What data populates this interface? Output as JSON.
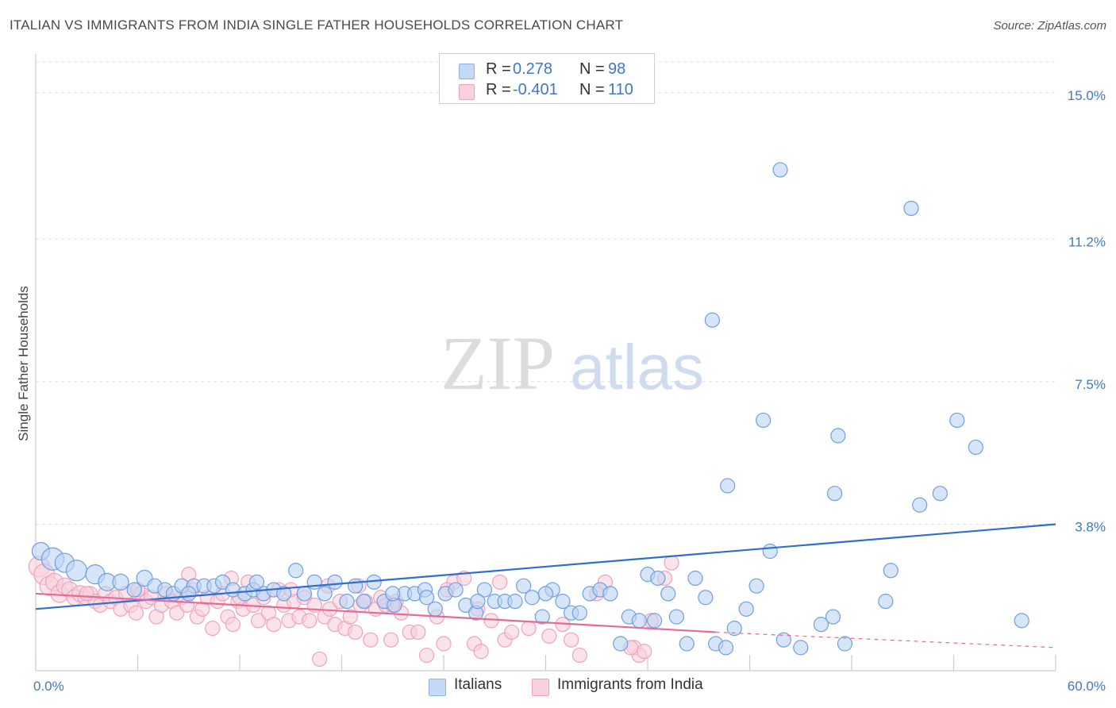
{
  "title": "ITALIAN VS IMMIGRANTS FROM INDIA SINGLE FATHER HOUSEHOLDS CORRELATION CHART",
  "source": "Source: ZipAtlas.com",
  "watermark": {
    "zip": "ZIP",
    "atlas": "atlas"
  },
  "legend": {
    "rows": [
      {
        "r_label": "R =",
        "r_value": "0.278",
        "n_label": "N =",
        "n_value": "98",
        "color": "#8fb3e8",
        "fill": "#c5d8f5"
      },
      {
        "r_label": "R =",
        "r_value": "-0.401",
        "n_label": "N =",
        "n_value": "110",
        "color": "#f0a2bb",
        "fill": "#f9d0dc"
      }
    ]
  },
  "bottom_legend": [
    {
      "label": "Italians",
      "color": "#8fb3e8",
      "fill": "#c5d8f5"
    },
    {
      "label": "Immigrants from India",
      "color": "#f0a2bb",
      "fill": "#f9d0dc"
    }
  ],
  "chart_data": {
    "type": "scatter",
    "title": "ITALIAN VS IMMIGRANTS FROM INDIA SINGLE FATHER HOUSEHOLDS CORRELATION CHART",
    "xlabel": "",
    "ylabel": "Single Father Households",
    "xlim": [
      0,
      60
    ],
    "ylim": [
      0,
      15.8
    ],
    "x_tick_labels": [
      "0.0%",
      "60.0%"
    ],
    "y_ticks": [
      3.8,
      7.5,
      11.2,
      15.0
    ],
    "y_tick_labels": [
      "3.8%",
      "7.5%",
      "11.2%",
      "15.0%"
    ],
    "grid": "horizontal dashed",
    "series": [
      {
        "name": "Italians",
        "color": "#6f9fe0",
        "fill": "#bcd3f3",
        "trend": {
          "x": [
            0,
            60
          ],
          "y": [
            1.6,
            3.8
          ],
          "color": "#2e6fcf"
        },
        "points": [
          [
            0.3,
            3.1,
            11
          ],
          [
            1.0,
            2.9,
            14
          ],
          [
            1.7,
            2.8,
            12
          ],
          [
            2.4,
            2.6,
            13
          ],
          [
            3.5,
            2.5,
            12
          ],
          [
            4.2,
            2.3,
            11
          ],
          [
            5.0,
            2.3,
            10
          ],
          [
            5.8,
            2.1,
            9
          ],
          [
            6.4,
            2.4,
            10
          ],
          [
            7.0,
            2.2,
            9
          ],
          [
            7.6,
            2.1,
            9
          ],
          [
            8.1,
            2.0,
            9
          ],
          [
            8.6,
            2.2,
            9
          ],
          [
            9.3,
            2.2,
            9
          ],
          [
            9.9,
            2.2,
            9
          ],
          [
            10.5,
            2.2,
            9
          ],
          [
            11.0,
            2.3,
            9
          ],
          [
            11.6,
            2.1,
            9
          ],
          [
            12.3,
            2.0,
            9
          ],
          [
            12.8,
            2.1,
            9
          ],
          [
            13.4,
            2.0,
            9
          ],
          [
            14.0,
            2.1,
            9
          ],
          [
            14.6,
            2.0,
            9
          ],
          [
            15.3,
            2.6,
            9
          ],
          [
            15.8,
            2.0,
            9
          ],
          [
            16.4,
            2.3,
            9
          ],
          [
            17.0,
            2.0,
            9
          ],
          [
            17.6,
            2.3,
            9
          ],
          [
            18.3,
            1.8,
            9
          ],
          [
            18.8,
            2.2,
            9
          ],
          [
            19.3,
            1.8,
            9
          ],
          [
            19.9,
            2.3,
            9
          ],
          [
            20.5,
            1.8,
            9
          ],
          [
            21.1,
            1.7,
            9
          ],
          [
            21.7,
            2.0,
            9
          ],
          [
            22.3,
            2.0,
            9
          ],
          [
            22.9,
            2.1,
            9
          ],
          [
            23.5,
            1.6,
            9
          ],
          [
            24.1,
            2.0,
            9
          ],
          [
            24.7,
            2.1,
            9
          ],
          [
            25.3,
            1.7,
            9
          ],
          [
            25.9,
            1.5,
            9
          ],
          [
            26.4,
            2.1,
            9
          ],
          [
            27.0,
            1.8,
            9
          ],
          [
            27.6,
            1.8,
            9
          ],
          [
            28.2,
            1.8,
            9
          ],
          [
            28.7,
            2.2,
            9
          ],
          [
            29.2,
            1.9,
            9
          ],
          [
            29.8,
            1.4,
            9
          ],
          [
            30.4,
            2.1,
            9
          ],
          [
            31.0,
            1.8,
            9
          ],
          [
            31.5,
            1.5,
            9
          ],
          [
            32.0,
            1.5,
            9
          ],
          [
            32.6,
            2.0,
            9
          ],
          [
            33.2,
            2.1,
            9
          ],
          [
            33.8,
            2.0,
            9
          ],
          [
            34.4,
            0.7,
            9
          ],
          [
            34.9,
            1.4,
            9
          ],
          [
            35.5,
            1.3,
            9
          ],
          [
            36.0,
            2.5,
            9
          ],
          [
            36.6,
            2.4,
            9
          ],
          [
            37.2,
            2.0,
            9
          ],
          [
            37.7,
            1.4,
            9
          ],
          [
            38.3,
            0.7,
            9
          ],
          [
            38.8,
            2.4,
            9
          ],
          [
            39.4,
            1.9,
            9
          ],
          [
            40.0,
            0.7,
            9
          ],
          [
            40.6,
            0.6,
            9
          ],
          [
            41.1,
            1.1,
            9
          ],
          [
            41.8,
            1.6,
            9
          ],
          [
            42.4,
            2.2,
            9
          ],
          [
            43.2,
            3.1,
            9
          ],
          [
            45.0,
            0.6,
            9
          ],
          [
            46.2,
            1.2,
            9
          ],
          [
            46.9,
            1.4,
            9
          ],
          [
            44.0,
            0.8,
            9
          ],
          [
            47.6,
            0.7,
            9
          ],
          [
            50.3,
            2.6,
            9
          ],
          [
            50.0,
            1.8,
            9
          ],
          [
            52.0,
            4.3,
            9
          ],
          [
            53.2,
            4.6,
            9
          ],
          [
            54.2,
            6.5,
            9
          ],
          [
            55.3,
            5.8,
            9
          ],
          [
            58.0,
            1.3,
            9
          ],
          [
            47.0,
            4.6,
            9
          ],
          [
            47.2,
            6.1,
            9
          ],
          [
            42.8,
            6.5,
            9
          ],
          [
            40.7,
            4.8,
            9
          ],
          [
            39.8,
            9.1,
            9
          ],
          [
            43.8,
            13.0,
            9
          ],
          [
            51.5,
            12.0,
            9
          ],
          [
            9.0,
            2.0,
            9
          ],
          [
            13.0,
            2.3,
            9
          ],
          [
            21.0,
            2.0,
            9
          ],
          [
            23.0,
            1.9,
            9
          ],
          [
            26.0,
            1.8,
            9
          ],
          [
            30.0,
            2.0,
            9
          ],
          [
            36.4,
            1.3,
            9
          ]
        ]
      },
      {
        "name": "Immigrants from India",
        "color": "#f0a2bb",
        "fill": "#f9d0dc",
        "trend": {
          "x": [
            0,
            40
          ],
          "y": [
            2.0,
            1.0
          ],
          "color": "#e46b98",
          "dashed_to": [
            60,
            0.6
          ]
        },
        "points": [
          [
            0.2,
            2.7,
            13
          ],
          [
            0.5,
            2.5,
            13
          ],
          [
            0.8,
            2.2,
            12
          ],
          [
            1.1,
            2.3,
            11
          ],
          [
            1.4,
            2.0,
            11
          ],
          [
            1.7,
            2.2,
            10
          ],
          [
            2.0,
            2.1,
            10
          ],
          [
            2.3,
            1.9,
            10
          ],
          [
            2.6,
            2.0,
            10
          ],
          [
            2.9,
            1.9,
            9
          ],
          [
            3.2,
            2.0,
            9
          ],
          [
            3.5,
            1.8,
            9
          ],
          [
            3.8,
            1.7,
            9
          ],
          [
            4.1,
            2.0,
            9
          ],
          [
            4.4,
            1.8,
            9
          ],
          [
            4.7,
            1.9,
            9
          ],
          [
            5.0,
            1.6,
            9
          ],
          [
            5.3,
            2.0,
            9
          ],
          [
            5.6,
            1.7,
            9
          ],
          [
            5.9,
            1.5,
            9
          ],
          [
            6.2,
            2.0,
            9
          ],
          [
            6.5,
            1.8,
            9
          ],
          [
            6.8,
            1.9,
            9
          ],
          [
            7.1,
            1.4,
            9
          ],
          [
            7.4,
            1.7,
            9
          ],
          [
            7.7,
            2.0,
            9
          ],
          [
            8.0,
            1.8,
            9
          ],
          [
            8.3,
            1.5,
            9
          ],
          [
            8.6,
            1.9,
            9
          ],
          [
            8.9,
            1.7,
            9
          ],
          [
            9.2,
            2.1,
            9
          ],
          [
            9.5,
            1.4,
            9
          ],
          [
            9.8,
            1.6,
            9
          ],
          [
            10.1,
            1.9,
            9
          ],
          [
            10.4,
            1.1,
            9
          ],
          [
            10.7,
            1.8,
            9
          ],
          [
            11.0,
            2.0,
            9
          ],
          [
            11.3,
            1.4,
            9
          ],
          [
            11.6,
            1.2,
            9
          ],
          [
            11.9,
            1.8,
            9
          ],
          [
            12.2,
            1.6,
            9
          ],
          [
            12.5,
            2.3,
            9
          ],
          [
            12.8,
            1.7,
            9
          ],
          [
            13.1,
            1.3,
            9
          ],
          [
            13.4,
            1.9,
            9
          ],
          [
            13.7,
            1.5,
            9
          ],
          [
            14.0,
            1.2,
            9
          ],
          [
            14.3,
            2.1,
            9
          ],
          [
            14.6,
            1.7,
            9
          ],
          [
            14.9,
            1.3,
            9
          ],
          [
            15.2,
            1.8,
            9
          ],
          [
            15.5,
            1.4,
            9
          ],
          [
            15.8,
            1.9,
            9
          ],
          [
            16.1,
            1.3,
            9
          ],
          [
            16.4,
            1.7,
            9
          ],
          [
            16.7,
            0.3,
            9
          ],
          [
            17.0,
            1.4,
            9
          ],
          [
            17.3,
            1.6,
            9
          ],
          [
            17.6,
            1.2,
            9
          ],
          [
            17.9,
            1.8,
            9
          ],
          [
            18.2,
            1.1,
            9
          ],
          [
            18.5,
            1.4,
            9
          ],
          [
            18.8,
            1.0,
            9
          ],
          [
            19.1,
            1.7,
            9
          ],
          [
            19.4,
            1.8,
            9
          ],
          [
            19.7,
            0.8,
            9
          ],
          [
            20.0,
            1.6,
            9
          ],
          [
            20.3,
            1.9,
            9
          ],
          [
            20.6,
            1.7,
            9
          ],
          [
            20.9,
            0.8,
            9
          ],
          [
            21.2,
            1.8,
            9
          ],
          [
            21.5,
            1.5,
            9
          ],
          [
            22.0,
            1.0,
            9
          ],
          [
            22.5,
            1.0,
            9
          ],
          [
            23.0,
            0.4,
            9
          ],
          [
            23.6,
            1.4,
            9
          ],
          [
            24.0,
            0.7,
            9
          ],
          [
            24.6,
            2.3,
            9
          ],
          [
            25.2,
            2.4,
            9
          ],
          [
            25.8,
            0.7,
            9
          ],
          [
            26.2,
            0.5,
            9
          ],
          [
            26.8,
            1.3,
            9
          ],
          [
            27.3,
            2.3,
            9
          ],
          [
            27.6,
            0.8,
            9
          ],
          [
            28.0,
            1.0,
            9
          ],
          [
            29.0,
            1.1,
            9
          ],
          [
            30.2,
            0.9,
            9
          ],
          [
            31.0,
            1.2,
            9
          ],
          [
            31.5,
            0.8,
            9
          ],
          [
            32.0,
            0.4,
            9
          ],
          [
            33.0,
            2.0,
            9
          ],
          [
            33.5,
            2.3,
            9
          ],
          [
            35.2,
            0.6,
            9
          ],
          [
            35.5,
            0.4,
            9
          ],
          [
            35.8,
            0.5,
            9
          ],
          [
            35.0,
            0.6,
            9
          ],
          [
            36.2,
            1.3,
            9
          ],
          [
            37.0,
            2.4,
            9
          ],
          [
            37.4,
            2.8,
            9
          ],
          [
            24.2,
            2.1,
            9
          ],
          [
            19.0,
            2.2,
            9
          ],
          [
            17.2,
            2.2,
            9
          ],
          [
            15.0,
            2.1,
            9
          ],
          [
            11.5,
            2.4,
            9
          ],
          [
            9.0,
            2.5,
            9
          ],
          [
            6.0,
            2.1,
            9
          ],
          [
            3.0,
            2.0,
            9
          ],
          [
            12.0,
            1.9,
            9
          ],
          [
            21.0,
            1.7,
            9
          ],
          [
            26.0,
            1.6,
            9
          ]
        ]
      }
    ]
  }
}
